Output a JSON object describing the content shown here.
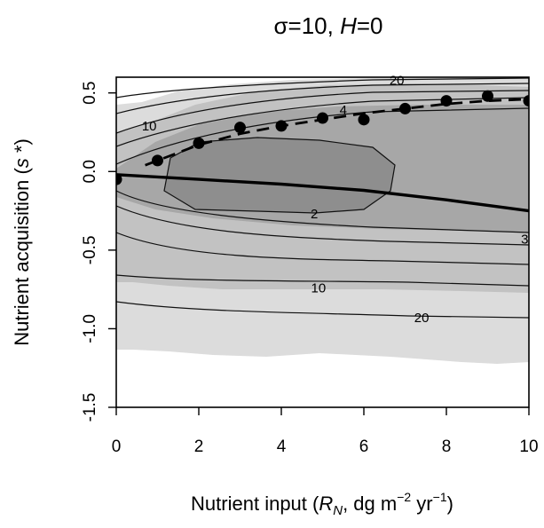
{
  "chart_data": {
    "type": "scatter",
    "title_prefix": "σ=10, ",
    "title_italic": "H",
    "title_suffix": "=0",
    "xlabel_prefix": "Nutrient input (",
    "xlabel_var": "R",
    "xlabel_sub": "N",
    "xlabel_mid": ", dg m",
    "xlabel_exp1": "−2",
    "xlabel_mid2": " yr",
    "xlabel_exp2": "−1",
    "xlabel_suffix": ")",
    "ylabel_prefix": "Nutrient acquisition (",
    "ylabel_var": "s",
    "ylabel_suffix": " *)",
    "xlim": [
      0,
      10
    ],
    "ylim": [
      -1.5,
      0.6
    ],
    "x_ticks": [
      0,
      2,
      4,
      6,
      8,
      10
    ],
    "x_tick_labels": [
      "0",
      "2",
      "4",
      "6",
      "8",
      "10"
    ],
    "y_ticks": [
      -1.5,
      -1.0,
      -0.5,
      0.0,
      0.5
    ],
    "y_tick_labels": [
      "-1.5",
      "-1.0",
      "-0.5",
      "0.0",
      "0.5"
    ],
    "grid": false,
    "contour_labels": [
      {
        "text": "10",
        "x": 0.8,
        "y": 0.29
      },
      {
        "text": "20",
        "x": 6.8,
        "y": 0.58
      },
      {
        "text": "4",
        "x": 5.5,
        "y": 0.39
      },
      {
        "text": "2",
        "x": 4.8,
        "y": -0.27
      },
      {
        "text": "3",
        "x": 9.9,
        "y": -0.43
      },
      {
        "text": "10",
        "x": 4.9,
        "y": -0.74
      },
      {
        "text": "20",
        "x": 7.4,
        "y": -0.93
      }
    ],
    "series": [
      {
        "style": "points",
        "x": [
          0,
          1,
          2,
          3,
          4,
          5,
          6,
          7,
          8,
          9,
          10
        ],
        "y": [
          -0.05,
          0.07,
          0.18,
          0.28,
          0.29,
          0.34,
          0.33,
          0.4,
          0.45,
          0.48,
          0.45
        ]
      },
      {
        "style": "dashed",
        "x": [
          0.7,
          2,
          3,
          4,
          5,
          6,
          7,
          8,
          9,
          10
        ],
        "y": [
          0.04,
          0.17,
          0.24,
          0.29,
          0.33,
          0.37,
          0.4,
          0.43,
          0.45,
          0.46
        ]
      },
      {
        "style": "solid",
        "x": [
          0,
          2,
          4,
          6,
          8,
          10
        ],
        "y": [
          -0.02,
          -0.05,
          -0.08,
          -0.12,
          -0.18,
          -0.25
        ]
      }
    ]
  }
}
